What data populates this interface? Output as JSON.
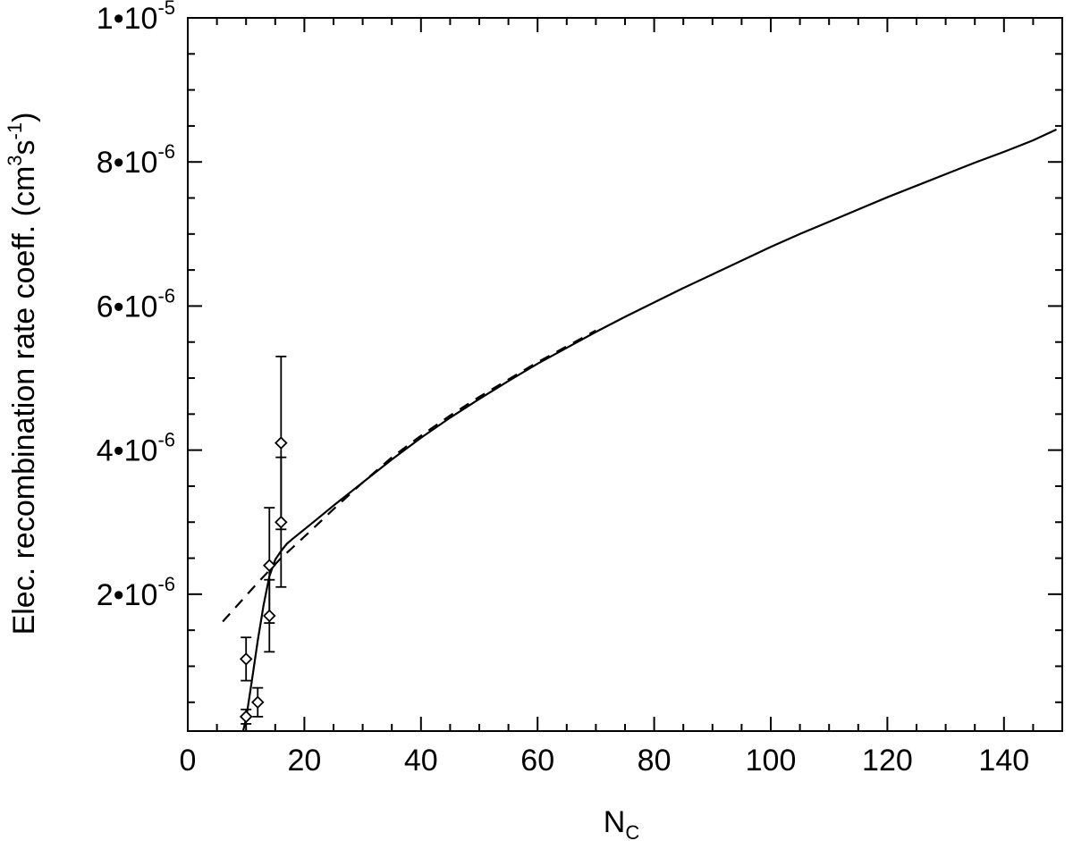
{
  "chart_data": {
    "type": "line",
    "xlabel": {
      "main": "N",
      "sub": "C"
    },
    "ylabel": {
      "prefix": "Elec. recombination rate coeff. (cm",
      "exp1": "3",
      "mid": "s",
      "exp2": "-1",
      "suffix": ")"
    },
    "xlim": [
      0,
      150
    ],
    "ylim": [
      1e-07,
      1e-05
    ],
    "x_ticks": [
      {
        "value": 0,
        "label": "0"
      },
      {
        "value": 20,
        "label": "20"
      },
      {
        "value": 40,
        "label": "40"
      },
      {
        "value": 60,
        "label": "60"
      },
      {
        "value": 80,
        "label": "80"
      },
      {
        "value": 100,
        "label": "100"
      },
      {
        "value": 120,
        "label": "120"
      },
      {
        "value": 140,
        "label": "140"
      }
    ],
    "x_minor_step": 5,
    "y_ticks": [
      {
        "value": 2e-06,
        "mant": "2•10",
        "exp": "-6"
      },
      {
        "value": 4e-06,
        "mant": "4•10",
        "exp": "-6"
      },
      {
        "value": 6e-06,
        "mant": "6•10",
        "exp": "-6"
      },
      {
        "value": 8e-06,
        "mant": "8•10",
        "exp": "-6"
      },
      {
        "value": 1e-05,
        "mant": "1•10",
        "exp": "-5"
      }
    ],
    "y_minor_step": 5e-07,
    "series": [
      {
        "style": "solid",
        "x": [
          9.5,
          10,
          11,
          12,
          13,
          14,
          15,
          16,
          17,
          18,
          20,
          22,
          25,
          30,
          35,
          40,
          45,
          50,
          55,
          60,
          65,
          70,
          75,
          80,
          85,
          90,
          95,
          100,
          105,
          110,
          115,
          120,
          125,
          130,
          135,
          140,
          145,
          149
        ],
        "y": [
          1e-07,
          2.7e-07,
          8e-07,
          1.35e-06,
          1.85e-06,
          2.25e-06,
          2.48e-06,
          2.6e-06,
          2.7e-06,
          2.77e-06,
          2.9e-06,
          3.03e-06,
          3.23e-06,
          3.55e-06,
          3.87e-06,
          4.17e-06,
          4.45e-06,
          4.71e-06,
          4.96e-06,
          5.2e-06,
          5.42e-06,
          5.64e-06,
          5.85e-06,
          6.05e-06,
          6.25e-06,
          6.44e-06,
          6.63e-06,
          6.82e-06,
          7e-06,
          7.17e-06,
          7.34e-06,
          7.51e-06,
          7.67e-06,
          7.83e-06,
          7.99e-06,
          8.14e-06,
          8.3e-06,
          8.45e-06
        ]
      },
      {
        "style": "dashed",
        "x": [
          6,
          8,
          10,
          12,
          14,
          16,
          18,
          20,
          22,
          25,
          30,
          35,
          40,
          45,
          50,
          55,
          60,
          65,
          70
        ],
        "y": [
          1.62e-06,
          1.8e-06,
          1.98e-06,
          2.16e-06,
          2.33e-06,
          2.5e-06,
          2.65e-06,
          2.8e-06,
          2.95e-06,
          3.18e-06,
          3.55e-06,
          3.9e-06,
          4.2e-06,
          4.48e-06,
          4.74e-06,
          4.98e-06,
          5.22e-06,
          5.44e-06,
          5.66e-06
        ]
      }
    ],
    "points": [
      {
        "x": 10,
        "y": 1.1e-06,
        "err_lo": 8e-07,
        "err_hi": 1.4e-06
      },
      {
        "x": 10,
        "y": 3e-07,
        "err_lo": 2e-07,
        "err_hi": 4e-07
      },
      {
        "x": 12,
        "y": 5e-07,
        "err_lo": 3e-07,
        "err_hi": 7e-07
      },
      {
        "x": 14,
        "y": 2.4e-06,
        "err_lo": 1.6e-06,
        "err_hi": 3.2e-06
      },
      {
        "x": 14,
        "y": 1.7e-06,
        "err_lo": 1.2e-06,
        "err_hi": 2.2e-06
      },
      {
        "x": 16,
        "y": 4.1e-06,
        "err_lo": 2.9e-06,
        "err_hi": 5.3e-06
      },
      {
        "x": 16,
        "y": 3e-06,
        "err_lo": 2.1e-06,
        "err_hi": 3.9e-06
      }
    ],
    "grid": false,
    "legend": "none"
  }
}
